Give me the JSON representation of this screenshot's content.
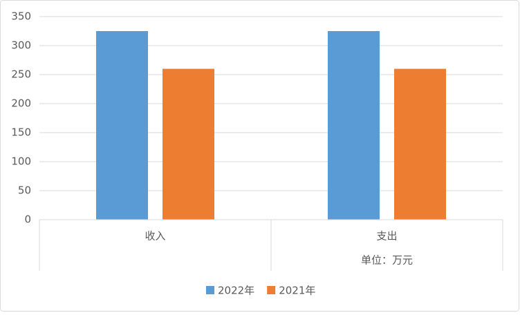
{
  "chart_data": {
    "type": "bar",
    "categories": [
      "收入",
      "支出"
    ],
    "series": [
      {
        "name": "2022年",
        "color": "#5b9bd5",
        "values": [
          325,
          325
        ]
      },
      {
        "name": "2021年",
        "color": "#ed7d31",
        "values": [
          260,
          260
        ]
      }
    ],
    "ylim": [
      0,
      350
    ],
    "yticks": [
      0,
      50,
      100,
      150,
      200,
      250,
      300,
      350
    ],
    "grid": true,
    "legend": "bottom",
    "annotation": "单位：万元"
  }
}
